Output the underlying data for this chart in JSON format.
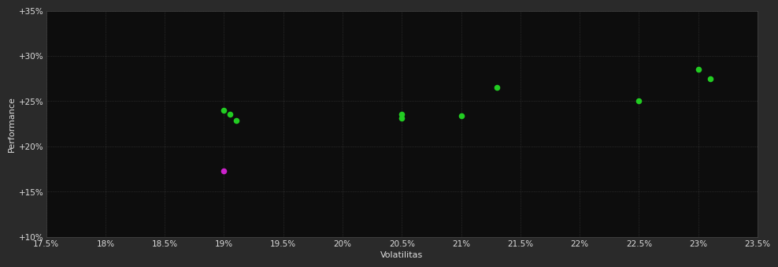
{
  "background_color": "#2a2a2a",
  "plot_bg_color": "#0d0d0d",
  "grid_color": "#444444",
  "xlabel": "Volatilitas",
  "ylabel": "Performance",
  "xlim": [
    17.5,
    23.5
  ],
  "ylim": [
    10,
    35
  ],
  "xtick_labels": [
    "17.5%",
    "18%",
    "18.5%",
    "19%",
    "19.5%",
    "20%",
    "20.5%",
    "21%",
    "21.5%",
    "22%",
    "22.5%",
    "23%",
    "23.5%"
  ],
  "xtick_values": [
    17.5,
    18.0,
    18.5,
    19.0,
    19.5,
    20.0,
    20.5,
    21.0,
    21.5,
    22.0,
    22.5,
    23.0,
    23.5
  ],
  "ytick_labels": [
    "+35%",
    "+30%",
    "+25%",
    "+20%",
    "+15%",
    "+10%"
  ],
  "ytick_values": [
    35,
    30,
    25,
    20,
    15,
    10
  ],
  "green_points": [
    [
      19.0,
      24.0
    ],
    [
      19.05,
      23.6
    ],
    [
      19.1,
      22.9
    ],
    [
      20.5,
      23.6
    ],
    [
      20.5,
      23.1
    ],
    [
      21.0,
      23.4
    ],
    [
      21.3,
      26.5
    ],
    [
      22.5,
      25.0
    ],
    [
      23.0,
      28.5
    ],
    [
      23.1,
      27.5
    ]
  ],
  "magenta_points": [
    [
      19.0,
      17.3
    ]
  ],
  "point_size": 30,
  "label_fontsize": 8,
  "tick_fontsize": 7.5,
  "text_color": "#dddddd",
  "grid_linestyle": ":",
  "grid_linewidth": 0.5,
  "green_color": "#22cc22",
  "magenta_color": "#cc22cc"
}
